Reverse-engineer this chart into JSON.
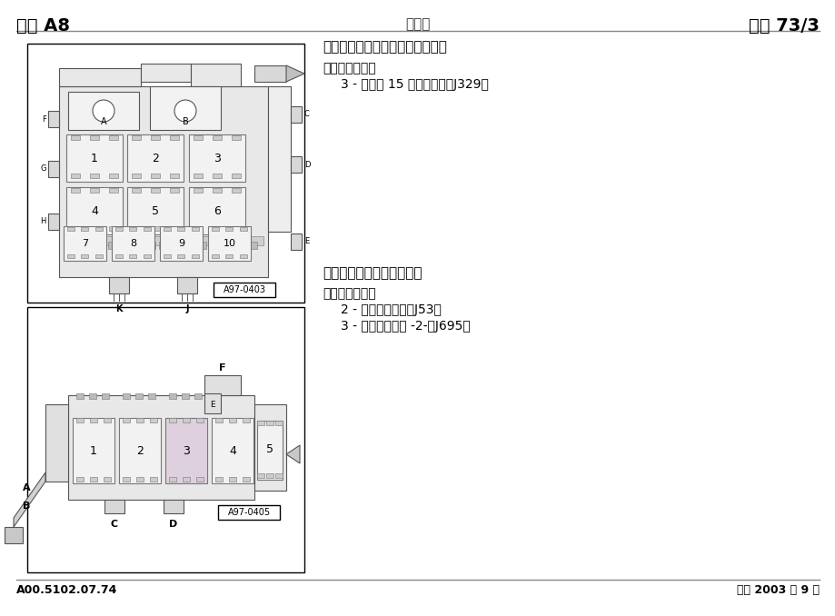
{
  "title_left": "奥迪 A8",
  "title_center": "电路图",
  "title_right": "编号 73/3",
  "footer_left": "A00.5102.07.74",
  "footer_right": "版本 2003 年 9 月",
  "section1_title": "左仪表板后的继电器座和保险丝座",
  "section1_subtitle": "继电器位置分配",
  "section1_item1": "3 - 总线端 15 供电继电器（J329）",
  "diagram1_code": "A97-0403",
  "section2_title": "副驾驶员脚部空间继电器座",
  "section2_subtitle": "继电器位置分配",
  "section2_item1": "2 - 起动机继电器（J53）",
  "section2_item2": "3 - 起动机继电器 -2-（J695）",
  "diagram2_code": "A97-0405",
  "bg_color": "#ffffff"
}
